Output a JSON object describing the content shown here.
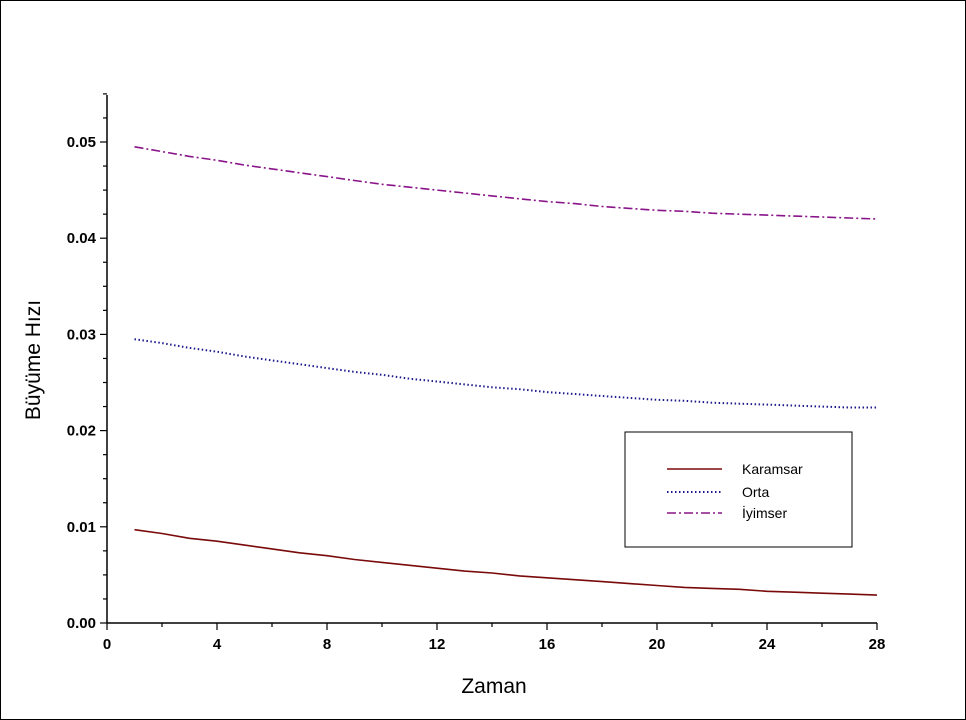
{
  "chart_data": {
    "type": "line",
    "title": "",
    "xlabel": "Zaman",
    "ylabel": "Büyüme Hızı",
    "xlim": [
      0,
      28
    ],
    "ylim": [
      0,
      0.055
    ],
    "x_ticks": [
      0,
      4,
      8,
      12,
      16,
      20,
      24,
      28
    ],
    "x_tick_labels": [
      "0",
      "4",
      "8",
      "12",
      "16",
      "20",
      "24",
      "28"
    ],
    "y_ticks": [
      0,
      0.01,
      0.02,
      0.03,
      0.04,
      0.05
    ],
    "y_tick_labels": [
      "0.00",
      "0.01",
      "0.02",
      "0.03",
      "0.04",
      "0.05"
    ],
    "grid": false,
    "legend_position": "right",
    "x": [
      1,
      2,
      3,
      4,
      5,
      6,
      7,
      8,
      9,
      10,
      11,
      12,
      13,
      14,
      15,
      16,
      17,
      18,
      19,
      20,
      21,
      22,
      23,
      24,
      25,
      26,
      27,
      28
    ],
    "series": [
      {
        "name": "Karamsar",
        "color": "#7a0a0a",
        "dash": "solid",
        "values": [
          0.0097,
          0.0093,
          0.0088,
          0.0085,
          0.0081,
          0.0077,
          0.0073,
          0.007,
          0.0066,
          0.0063,
          0.006,
          0.0057,
          0.0054,
          0.0052,
          0.0049,
          0.0047,
          0.0045,
          0.0043,
          0.0041,
          0.0039,
          0.0037,
          0.0036,
          0.0035,
          0.0033,
          0.0032,
          0.0031,
          0.003,
          0.0029
        ]
      },
      {
        "name": "Orta",
        "color": "#1a1a8c",
        "dash": "dotted",
        "values": [
          0.0295,
          0.0291,
          0.0286,
          0.0282,
          0.0277,
          0.0273,
          0.0269,
          0.0265,
          0.0261,
          0.0258,
          0.0254,
          0.0251,
          0.0248,
          0.0245,
          0.0243,
          0.024,
          0.0238,
          0.0236,
          0.0234,
          0.0232,
          0.0231,
          0.0229,
          0.0228,
          0.0227,
          0.0226,
          0.0225,
          0.0224,
          0.0224
        ]
      },
      {
        "name": "İyimser",
        "color": "#8a148a",
        "dash": "dashdot",
        "values": [
          0.0495,
          0.049,
          0.0485,
          0.0481,
          0.0476,
          0.0472,
          0.0468,
          0.0464,
          0.046,
          0.0456,
          0.0453,
          0.045,
          0.0447,
          0.0444,
          0.0441,
          0.0438,
          0.0436,
          0.0433,
          0.0431,
          0.0429,
          0.0428,
          0.0426,
          0.0425,
          0.0424,
          0.0423,
          0.0422,
          0.0421,
          0.042
        ]
      }
    ]
  }
}
